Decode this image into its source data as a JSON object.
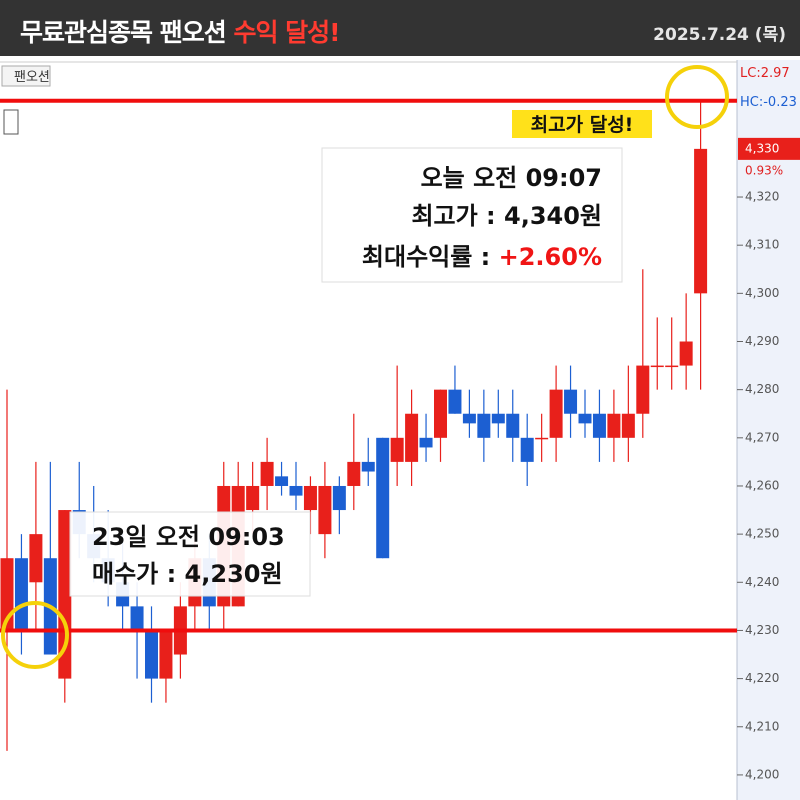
{
  "header": {
    "title": "무료관심종목 팬오션",
    "title_highlight": "수익 달성!",
    "date": "2025.7.24 (목)"
  },
  "chart_data": {
    "type": "candlestick",
    "tab_label": "팬오션",
    "open": [
      4230,
      4245,
      4240,
      4245,
      4220,
      4255,
      4250,
      4245,
      4240,
      4235,
      4230,
      4220,
      4225,
      4235,
      4245,
      4235,
      4235,
      4255,
      4260,
      4262,
      4260,
      4255,
      4250,
      4260,
      4260,
      4265,
      4270,
      4265,
      4265,
      4270,
      4270,
      4280,
      4275,
      4275,
      4275,
      4275,
      4270,
      4270,
      4270,
      4280,
      4275,
      4275,
      4270,
      4270,
      4275,
      4285,
      4285,
      4285,
      4300
    ],
    "high": [
      4280,
      4250,
      4265,
      4265,
      4255,
      4265,
      4260,
      4255,
      4250,
      4240,
      4235,
      4230,
      4240,
      4250,
      4250,
      4265,
      4265,
      4265,
      4270,
      4265,
      4265,
      4262,
      4265,
      4262,
      4275,
      4270,
      4270,
      4285,
      4280,
      4275,
      4280,
      4285,
      4280,
      4280,
      4280,
      4280,
      4275,
      4275,
      4285,
      4285,
      4280,
      4280,
      4280,
      4285,
      4305,
      4295,
      4295,
      4300,
      4340
    ],
    "low": [
      4205,
      4225,
      4230,
      4225,
      4215,
      4245,
      4240,
      4235,
      4230,
      4220,
      4215,
      4215,
      4220,
      4230,
      4230,
      4230,
      4235,
      4250,
      4255,
      4258,
      4255,
      4250,
      4245,
      4250,
      4255,
      4260,
      4245,
      4260,
      4260,
      4265,
      4265,
      4275,
      4270,
      4265,
      4270,
      4265,
      4260,
      4265,
      4265,
      4270,
      4270,
      4265,
      4265,
      4265,
      4270,
      4280,
      4280,
      4280,
      4280
    ],
    "close": [
      4245,
      4230,
      4250,
      4225,
      4255,
      4250,
      4245,
      4240,
      4235,
      4230,
      4220,
      4230,
      4235,
      4245,
      4235,
      4260,
      4260,
      4260,
      4265,
      4260,
      4258,
      4260,
      4260,
      4255,
      4265,
      4263,
      4245,
      4270,
      4275,
      4268,
      4280,
      4275,
      4273,
      4270,
      4273,
      4270,
      4265,
      4270,
      4280,
      4275,
      4273,
      4270,
      4275,
      4275,
      4285,
      4285,
      4285,
      4290,
      4330
    ],
    "up_color": "#e8201b",
    "down_color": "#1c5fd2",
    "levels": [
      4340,
      4230
    ],
    "level_color": "#f00d0d",
    "ylim": [
      4195,
      4347
    ],
    "yticks": [
      {
        "value": 4200,
        "label": "4,200"
      },
      {
        "value": 4210,
        "label": "4,210"
      },
      {
        "value": 4220,
        "label": "4,220"
      },
      {
        "value": 4230,
        "label": "4,230"
      },
      {
        "value": 4240,
        "label": "4,240"
      },
      {
        "value": 4250,
        "label": "4,250"
      },
      {
        "value": 4260,
        "label": "4,260"
      },
      {
        "value": 4270,
        "label": "4,270"
      },
      {
        "value": 4280,
        "label": "4,280"
      },
      {
        "value": 4290,
        "label": "4,290"
      },
      {
        "value": 4300,
        "label": "4,300"
      },
      {
        "value": 4310,
        "label": "4,310"
      },
      {
        "value": 4320,
        "label": "4,320"
      }
    ],
    "lc_label": "LC:2.97",
    "hc_label": "HC:-0.23",
    "last_price_label": "4,330",
    "change_label": "0.93%",
    "high_badge": "최고가 달성!",
    "high_note": {
      "time": "오늘 오전 09:07",
      "price": "최고가 : 4,340원",
      "return_label": "최대수익률 : ",
      "return": "+2.60%"
    },
    "buy_note": {
      "time": "23일 오전 09:03",
      "price": "매수가 : 4,230원"
    }
  }
}
